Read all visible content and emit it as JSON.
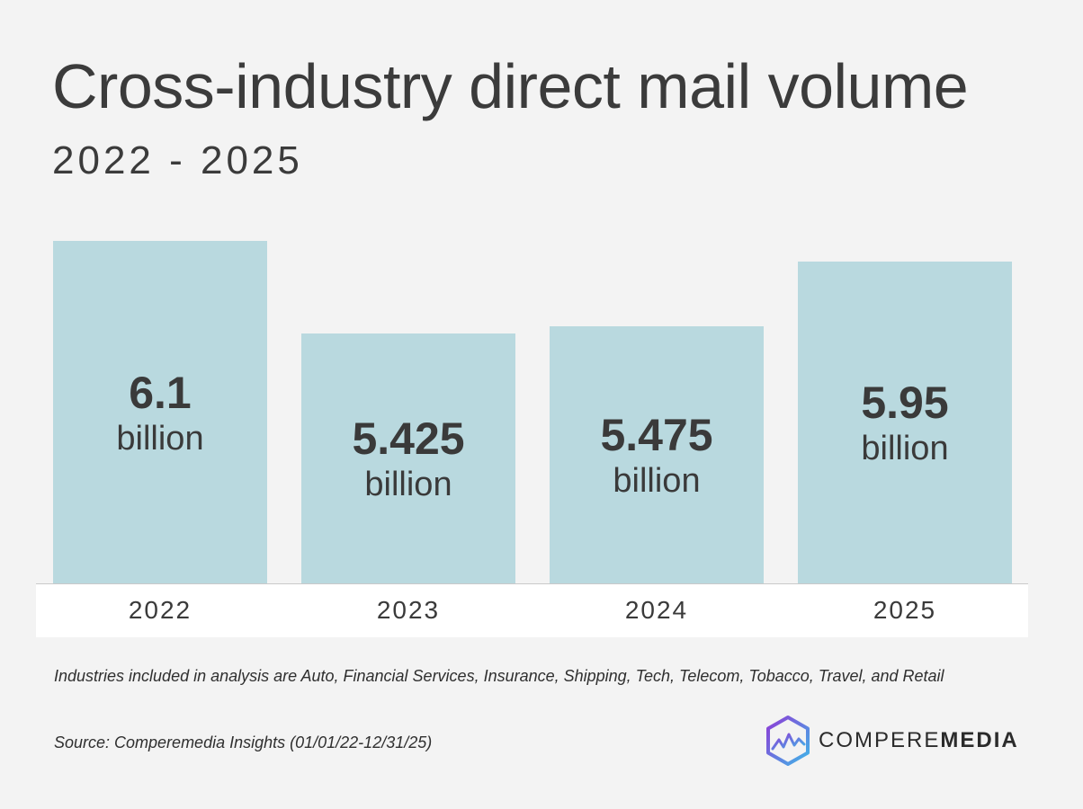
{
  "header": {
    "title": "Cross-industry direct mail volume",
    "subtitle": "2022 - 2025"
  },
  "chart_data": {
    "type": "bar",
    "categories": [
      "2022",
      "2023",
      "2024",
      "2025"
    ],
    "values": [
      6.1,
      5.425,
      5.475,
      5.95
    ],
    "value_labels": [
      "6.1",
      "5.425",
      "5.475",
      "5.95"
    ],
    "unit_label": "billion",
    "title": "Cross-industry direct mail volume",
    "subtitle": "2022 - 2025",
    "xlabel": "",
    "ylabel": "",
    "ylim": [
      3.6,
      6.1
    ],
    "grid": false,
    "legend": "none",
    "bar_color": "#b9d9df"
  },
  "footer": {
    "note": "Industries included in analysis are Auto, Financial Services, Insurance, Shipping, Tech, Telecom, Tobacco, Travel, and Retail",
    "source": "Source: Comperemedia Insights (01/01/22-12/31/25)"
  },
  "logo": {
    "text_regular": "COMPERE",
    "text_bold": "MEDIA",
    "icon": "hexagon-chart-icon",
    "colors": [
      "#8e3bd6",
      "#3fb6e8"
    ]
  }
}
